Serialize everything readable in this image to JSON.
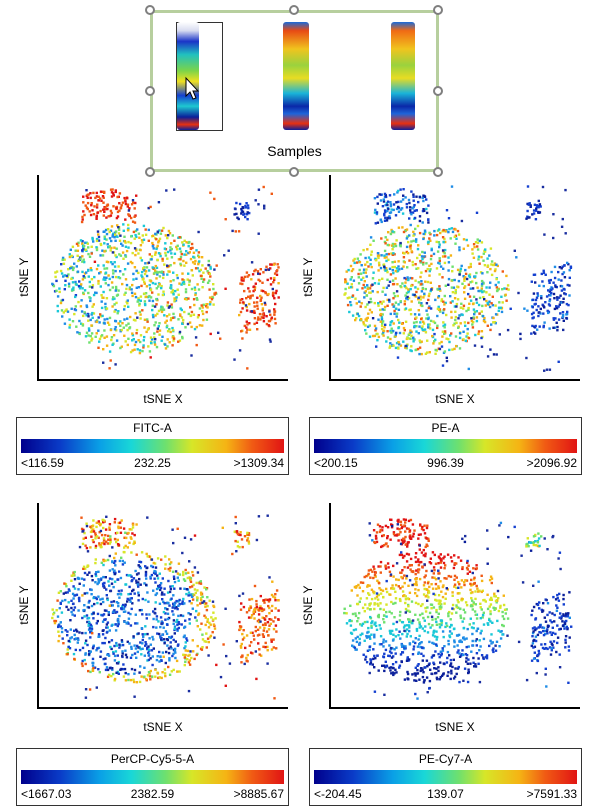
{
  "samples": {
    "label": "Samples"
  },
  "plots": [
    {
      "x_label": "tSNE X",
      "y_label": "tSNE Y",
      "legend_title": "FITC-A",
      "legend_min": "<116.59",
      "legend_mid": "232.25",
      "legend_max": ">1309.34"
    },
    {
      "x_label": "tSNE X",
      "y_label": "tSNE Y",
      "legend_title": "PE-A",
      "legend_min": "<200.15",
      "legend_mid": "996.39",
      "legend_max": ">2096.92"
    },
    {
      "x_label": "tSNE X",
      "y_label": "tSNE Y",
      "legend_title": "PerCP-Cy5-5-A",
      "legend_min": "<1667.03",
      "legend_mid": "2382.59",
      "legend_max": ">8885.67"
    },
    {
      "x_label": "tSNE X",
      "y_label": "tSNE Y",
      "legend_title": "PE-Cy7-A",
      "legend_min": "<-204.45",
      "legend_mid": "139.07",
      "legend_max": ">7591.33"
    }
  ],
  "colors": {
    "selection_border": "#b7cf9e",
    "handle": "#7f7f7f",
    "scale_low": "#00008c",
    "scale_high": "#e11414"
  }
}
